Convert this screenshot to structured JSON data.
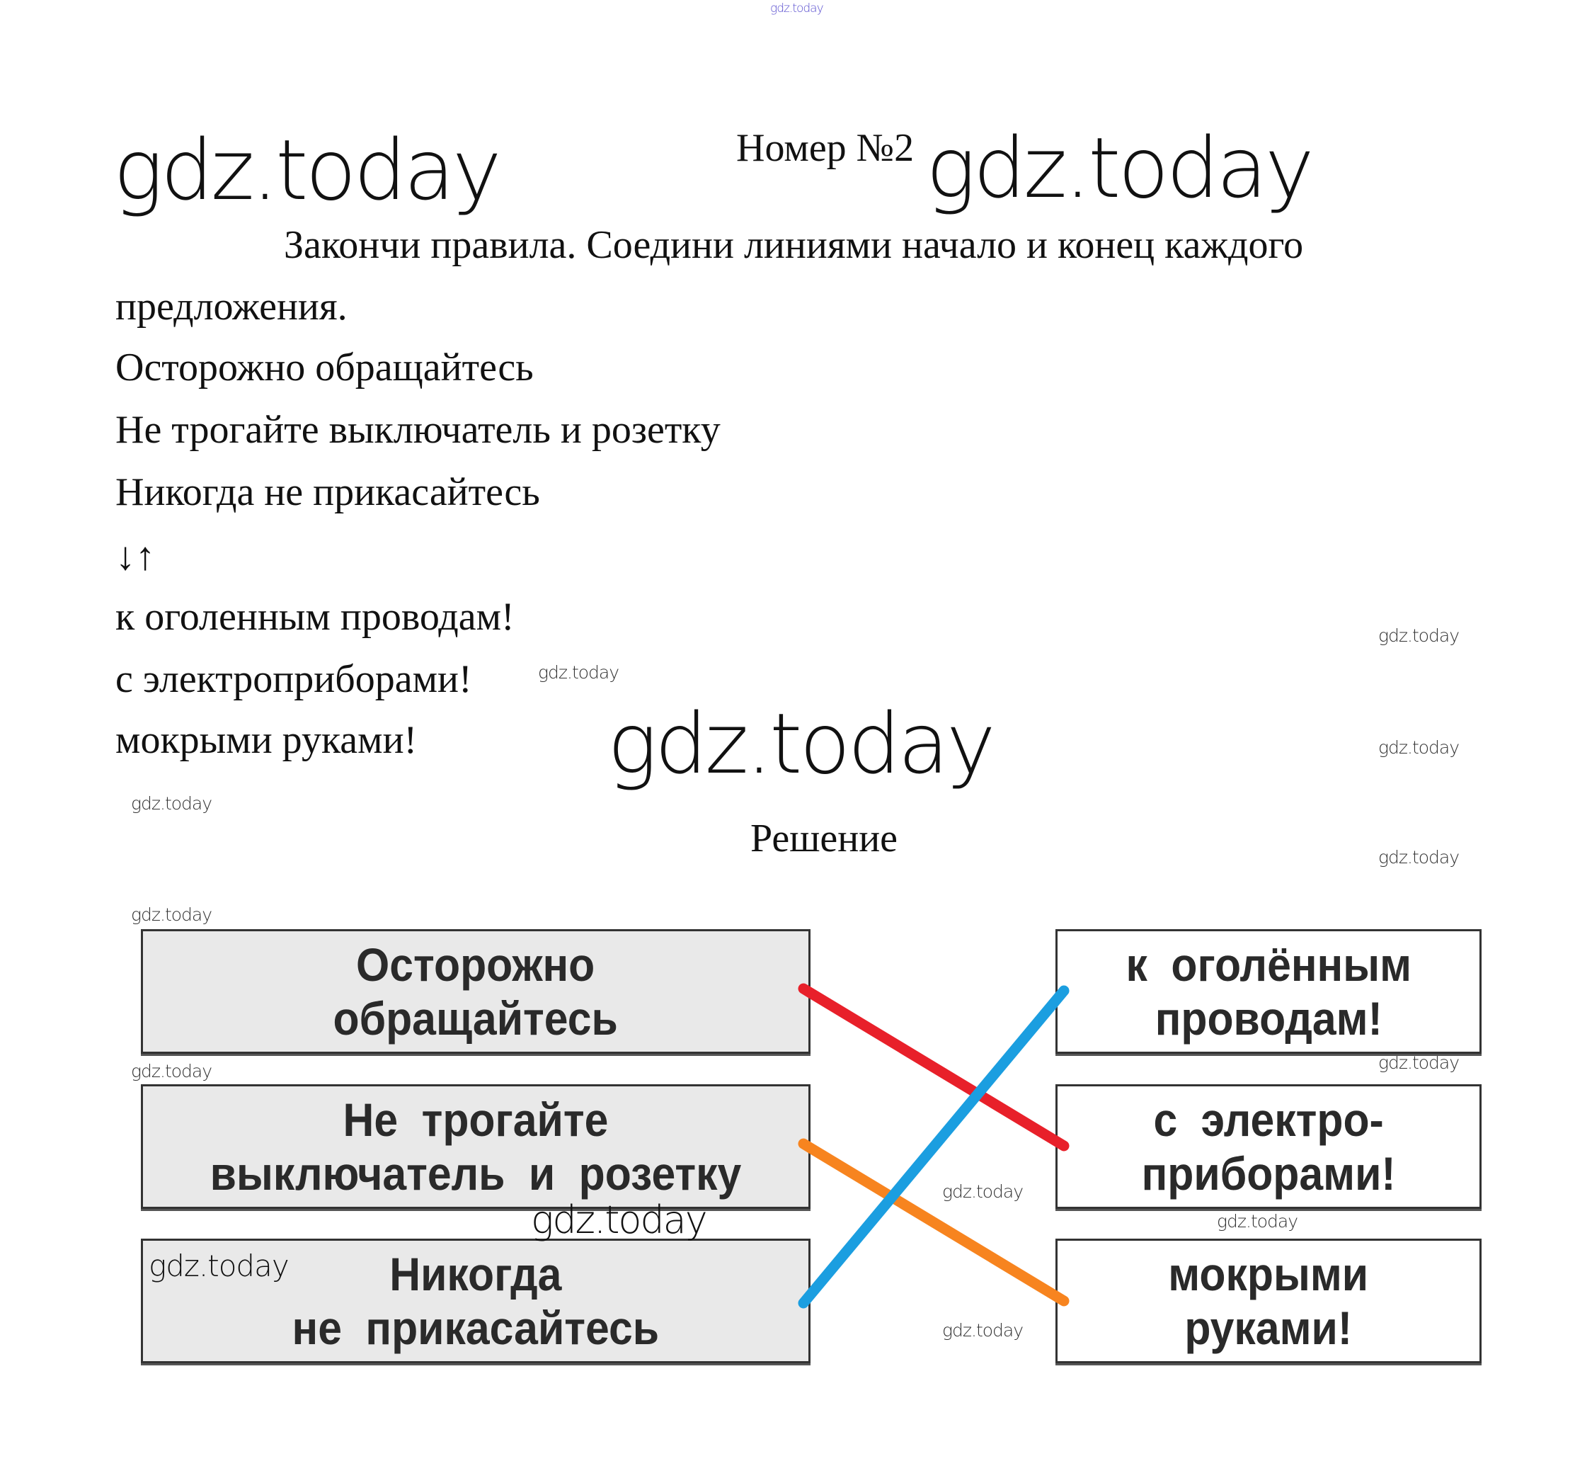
{
  "watermark": "gdz.today",
  "title": "Номер №2",
  "task": {
    "line1": "Закончи правила. Соедини линиями начало и конец каждого",
    "line2": "предложения."
  },
  "beginnings": [
    "Осторожно обращайтесь",
    "Не трогайте выключатель и розетку",
    "Никогда не прикасайтесь"
  ],
  "arrows": "↓↑",
  "endings": [
    "к оголенным проводам!",
    "с электроприборами!",
    "мокрыми руками!"
  ],
  "solution_heading": "Решение",
  "solution": {
    "left_boxes": [
      "Осторожно\nобращайтесь",
      "Не трогайте\nвыключатель и розетку",
      "Никогда\nне прикасайтесь"
    ],
    "right_boxes": [
      "к оголённым\nпроводам!",
      "с электро-\nприборами!",
      "мокрыми\nруками!"
    ],
    "connections": [
      {
        "from": 0,
        "to": 1,
        "color": "#e8202a"
      },
      {
        "from": 1,
        "to": 2,
        "color": "#f7841f"
      },
      {
        "from": 2,
        "to": 0,
        "color": "#1b9ee0"
      }
    ]
  }
}
